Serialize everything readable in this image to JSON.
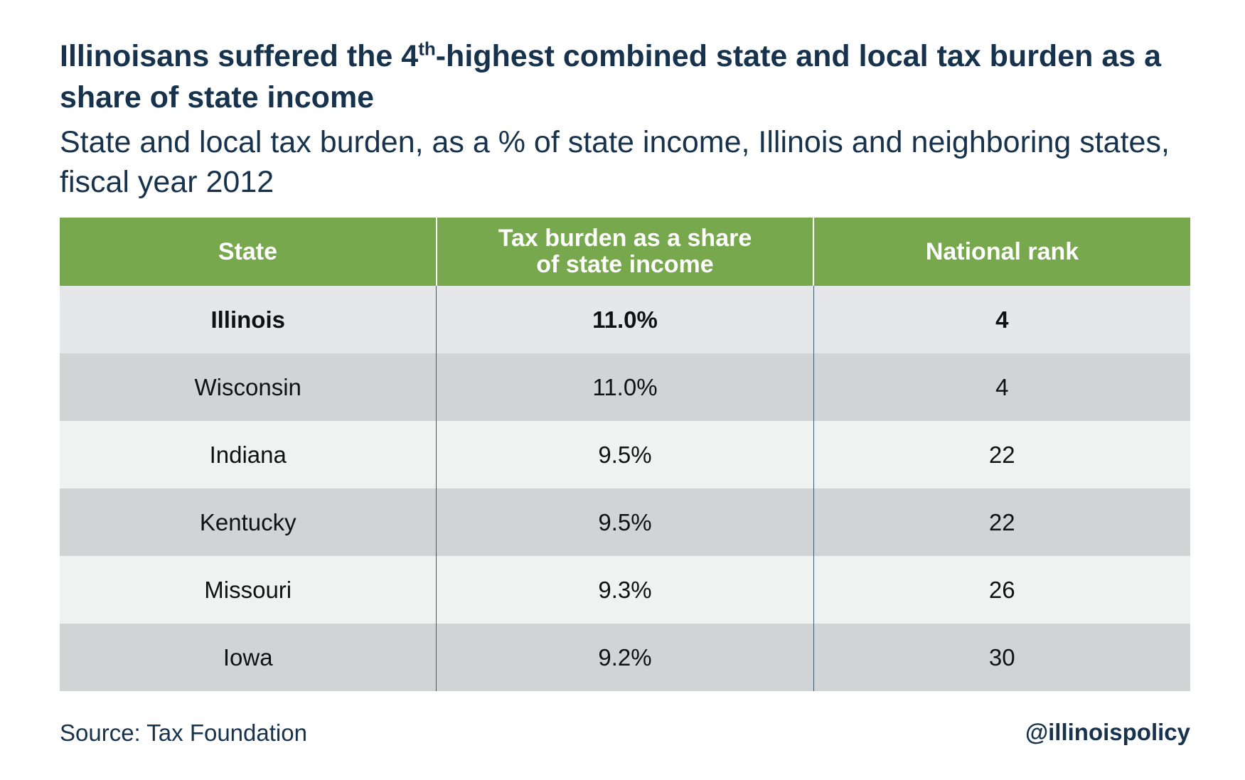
{
  "chart_data": {
    "type": "table",
    "title_pre": "Illinoisans suffered the 4",
    "title_sup": "th",
    "title_post": "-highest combined state and local tax burden as a share of state income",
    "subtitle": "State and local tax burden, as a % of state income, Illinois and neighboring states, fiscal year 2012",
    "columns": [
      "State",
      "Tax burden as a share of state income",
      "National rank"
    ],
    "rows": [
      {
        "state": "Illinois",
        "burden": "11.0%",
        "rank": "4",
        "highlight": true
      },
      {
        "state": "Wisconsin",
        "burden": "11.0%",
        "rank": "4"
      },
      {
        "state": "Indiana",
        "burden": "9.5%",
        "rank": "22"
      },
      {
        "state": "Kentucky",
        "burden": "9.5%",
        "rank": "22"
      },
      {
        "state": "Missouri",
        "burden": "9.3%",
        "rank": "26"
      },
      {
        "state": "Iowa",
        "burden": "9.2%",
        "rank": "30"
      }
    ],
    "source": "Source: Tax Foundation",
    "handle": "@illinoispolicy"
  },
  "colors": {
    "header_green": "#78a84e",
    "title_navy": "#17324d",
    "row_highlight": "#e6e7e9",
    "row_dark": "#d2d3d5",
    "row_light": "#f0f1f1"
  }
}
